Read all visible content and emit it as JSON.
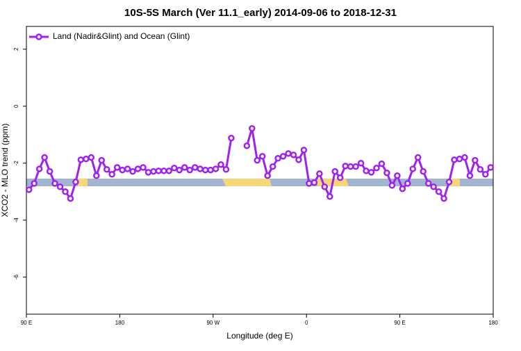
{
  "chart_data": {
    "type": "line",
    "title": "10S-5S March (Ver 11.1_early)   2014-09-06 to 2018-12-31",
    "x_label": "Longitude (deg E)",
    "y_label": "XCO2 - MLO trend (ppm)",
    "xlim": [
      90,
      540
    ],
    "ylim": [
      -7.3,
      2.8
    ],
    "xticks": [
      {
        "value": 90,
        "label": "90 E"
      },
      180,
      {
        "value": 270,
        "label": "90 W"
      },
      {
        "value": 360,
        "label": "0"
      },
      {
        "value": 450,
        "label": "90 E"
      },
      {
        "value": 540,
        "label": "180"
      }
    ],
    "yticks": [
      2,
      0,
      -2,
      -4,
      -6
    ],
    "legend": "top-left",
    "x": [
      92.5,
      97.5,
      102.5,
      107.5,
      112.5,
      117.5,
      122.5,
      127.5,
      132.5,
      137.5,
      142.5,
      147.5,
      152.5,
      157.5,
      162.5,
      167.5,
      172.5,
      177.5,
      182.5,
      187.5,
      192.5,
      197.5,
      202.5,
      207.5,
      212.5,
      217.5,
      222.5,
      227.5,
      232.5,
      237.5,
      242.5,
      247.5,
      252.5,
      257.5,
      262.5,
      267.5,
      272.5,
      277.5,
      282.5,
      287.5,
      292.5,
      297.5,
      302.5,
      307.5,
      312.5,
      317.5,
      322.5,
      327.5,
      332.5,
      337.5,
      342.5,
      347.5,
      352.5,
      357.5,
      362.5,
      367.5,
      372.5,
      377.5,
      382.5,
      387.5,
      392.5,
      397.5,
      402.5,
      407.5,
      412.5,
      417.5,
      422.5,
      427.5,
      432.5,
      437.5,
      442.5,
      447.5,
      452.5,
      457.5,
      462.5,
      467.5,
      472.5,
      477.5,
      482.5,
      487.5,
      492.5,
      497.5,
      502.5,
      507.5,
      512.5,
      517.5,
      522.5,
      527.5,
      532.5,
      537.5
    ],
    "series": [
      {
        "name": "Land (Nadir&Glint) and Ocean (Glint)",
        "color": "#a020f0",
        "values": [
          -2.93,
          -2.71,
          -2.2,
          -1.8,
          -2.29,
          -2.71,
          -2.83,
          -3.0,
          -3.24,
          -2.66,
          -1.88,
          -1.85,
          -1.8,
          -2.44,
          -1.9,
          -2.22,
          -2.39,
          -2.15,
          -2.24,
          -2.2,
          -2.29,
          -2.2,
          -2.15,
          -2.32,
          -2.29,
          -2.27,
          -2.27,
          -2.27,
          -2.17,
          -2.24,
          -2.15,
          -2.24,
          -2.15,
          -2.2,
          -2.24,
          -2.24,
          -2.2,
          -2.05,
          -2.22,
          -1.12,
          null,
          null,
          -1.39,
          -0.78,
          -1.9,
          -1.76,
          -2.44,
          -2.12,
          -1.83,
          -1.76,
          -1.66,
          -1.71,
          -1.88,
          -1.54,
          -2.71,
          -2.68,
          -2.37,
          -2.83,
          -3.17,
          -2.29,
          -2.51,
          -2.1,
          -2.12,
          -2.12,
          -2.0,
          -2.27,
          -2.32,
          -2.17,
          -2.02,
          -2.34,
          -2.78,
          -2.44,
          -2.9,
          -2.71,
          -2.2,
          -1.8,
          -2.29,
          -2.71,
          -2.83,
          -3.0,
          -3.24,
          -2.66,
          -1.88,
          -1.85,
          -1.8,
          -2.44,
          -1.9,
          -2.22,
          -2.39,
          -2.15
        ]
      }
    ]
  }
}
